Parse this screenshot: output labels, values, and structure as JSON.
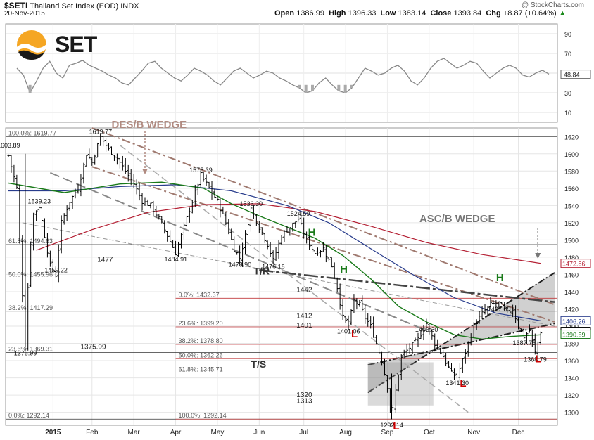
{
  "header": {
    "symbol": "$SETI",
    "name": "Thailand Set Index (EOD)",
    "exchange": "INDX",
    "date": "20-Nov-2015",
    "credit": "@ StockCharts.com",
    "open_label": "Open",
    "open": "1386.99",
    "high_label": "High",
    "high": "1396.33",
    "low_label": "Low",
    "low": "1383.14",
    "close_label": "Close",
    "close": "1393.84",
    "chg_label": "Chg",
    "chg": "+8.87 (+0.64%)",
    "chg_arrow": "▲"
  },
  "logo": {
    "text": "SET"
  },
  "colors": {
    "price": "#000000",
    "ma50": "#1a7a1a",
    "ma100": "#283c8c",
    "ma200": "#b41e32",
    "rsi": "#888888",
    "annotation": "#b08a80",
    "marker_red": "#cc0000",
    "marker_green": "#1a7a1a"
  },
  "chart_data": {
    "type": "ohlc",
    "x_ticks": [
      "2015",
      "Feb",
      "Mar",
      "Apr",
      "May",
      "Jun",
      "Jul",
      "Aug",
      "Sep",
      "Oct",
      "Nov",
      "Dec"
    ],
    "ylim": [
      1285,
      1630
    ],
    "y_ticks": [
      1300,
      1320,
      1340,
      1360,
      1380,
      1400,
      1420,
      1440,
      1460,
      1480,
      1500,
      1520,
      1540,
      1560,
      1580,
      1600,
      1620
    ],
    "grid": true,
    "close_series": [
      {
        "d": 0,
        "v": 1598
      },
      {
        "d": 6,
        "v": 1560
      },
      {
        "d": 12,
        "v": 1375.99
      },
      {
        "d": 15,
        "v": 1480
      },
      {
        "d": 18,
        "v": 1530
      },
      {
        "d": 22,
        "v": 1539.23
      },
      {
        "d": 26,
        "v": 1505
      },
      {
        "d": 30,
        "v": 1470
      },
      {
        "d": 34,
        "v": 1459.22
      },
      {
        "d": 38,
        "v": 1520
      },
      {
        "d": 44,
        "v": 1545
      },
      {
        "d": 50,
        "v": 1560
      },
      {
        "d": 56,
        "v": 1600
      },
      {
        "d": 60,
        "v": 1590
      },
      {
        "d": 66,
        "v": 1619.77
      },
      {
        "d": 72,
        "v": 1605
      },
      {
        "d": 78,
        "v": 1595
      },
      {
        "d": 84,
        "v": 1580
      },
      {
        "d": 90,
        "v": 1565
      },
      {
        "d": 96,
        "v": 1545
      },
      {
        "d": 102,
        "v": 1540
      },
      {
        "d": 108,
        "v": 1525
      },
      {
        "d": 114,
        "v": 1505
      },
      {
        "d": 120,
        "v": 1484.91
      },
      {
        "d": 126,
        "v": 1515
      },
      {
        "d": 132,
        "v": 1545
      },
      {
        "d": 138,
        "v": 1575.39
      },
      {
        "d": 144,
        "v": 1560
      },
      {
        "d": 150,
        "v": 1545
      },
      {
        "d": 156,
        "v": 1520
      },
      {
        "d": 162,
        "v": 1490
      },
      {
        "d": 166,
        "v": 1478.9
      },
      {
        "d": 170,
        "v": 1505
      },
      {
        "d": 174,
        "v": 1536.3
      },
      {
        "d": 180,
        "v": 1515
      },
      {
        "d": 186,
        "v": 1495
      },
      {
        "d": 190,
        "v": 1476.16
      },
      {
        "d": 196,
        "v": 1505
      },
      {
        "d": 202,
        "v": 1515
      },
      {
        "d": 208,
        "v": 1524.59
      },
      {
        "d": 214,
        "v": 1500
      },
      {
        "d": 220,
        "v": 1485
      },
      {
        "d": 226,
        "v": 1490
      },
      {
        "d": 232,
        "v": 1470
      },
      {
        "d": 236,
        "v": 1445
      },
      {
        "d": 240,
        "v": 1410
      },
      {
        "d": 244,
        "v": 1401.06
      },
      {
        "d": 248,
        "v": 1430
      },
      {
        "d": 252,
        "v": 1425
      },
      {
        "d": 256,
        "v": 1410
      },
      {
        "d": 260,
        "v": 1400
      },
      {
        "d": 264,
        "v": 1380
      },
      {
        "d": 268,
        "v": 1360
      },
      {
        "d": 272,
        "v": 1330
      },
      {
        "d": 275,
        "v": 1292.14
      },
      {
        "d": 278,
        "v": 1325
      },
      {
        "d": 282,
        "v": 1365
      },
      {
        "d": 288,
        "v": 1375
      },
      {
        "d": 294,
        "v": 1385
      },
      {
        "d": 300,
        "v": 1403.3
      },
      {
        "d": 306,
        "v": 1380
      },
      {
        "d": 312,
        "v": 1365
      },
      {
        "d": 318,
        "v": 1345
      },
      {
        "d": 322,
        "v": 1341.3
      },
      {
        "d": 328,
        "v": 1370
      },
      {
        "d": 334,
        "v": 1400
      },
      {
        "d": 340,
        "v": 1415
      },
      {
        "d": 346,
        "v": 1425
      },
      {
        "d": 352,
        "v": 1427.05
      },
      {
        "d": 358,
        "v": 1415
      },
      {
        "d": 362,
        "v": 1420
      },
      {
        "d": 366,
        "v": 1400
      },
      {
        "d": 370,
        "v": 1387.75
      },
      {
        "d": 374,
        "v": 1395
      },
      {
        "d": 378,
        "v": 1368.79
      },
      {
        "d": 382,
        "v": 1393.84
      }
    ],
    "ma50": [
      {
        "d": 0,
        "v": 1566
      },
      {
        "d": 40,
        "v": 1555
      },
      {
        "d": 80,
        "v": 1565
      },
      {
        "d": 110,
        "v": 1567
      },
      {
        "d": 140,
        "v": 1560
      },
      {
        "d": 160,
        "v": 1542
      },
      {
        "d": 180,
        "v": 1528
      },
      {
        "d": 200,
        "v": 1515
      },
      {
        "d": 220,
        "v": 1502
      },
      {
        "d": 240,
        "v": 1482
      },
      {
        "d": 260,
        "v": 1455
      },
      {
        "d": 280,
        "v": 1423
      },
      {
        "d": 300,
        "v": 1405
      },
      {
        "d": 320,
        "v": 1390
      },
      {
        "d": 340,
        "v": 1385
      },
      {
        "d": 360,
        "v": 1388
      },
      {
        "d": 382,
        "v": 1390
      }
    ],
    "ma100": [
      {
        "d": 0,
        "v": 1557
      },
      {
        "d": 40,
        "v": 1557
      },
      {
        "d": 80,
        "v": 1562
      },
      {
        "d": 120,
        "v": 1564
      },
      {
        "d": 160,
        "v": 1557
      },
      {
        "d": 200,
        "v": 1540
      },
      {
        "d": 230,
        "v": 1520
      },
      {
        "d": 260,
        "v": 1490
      },
      {
        "d": 290,
        "v": 1460
      },
      {
        "d": 320,
        "v": 1433
      },
      {
        "d": 350,
        "v": 1415
      },
      {
        "d": 382,
        "v": 1406.26
      }
    ],
    "ma200": [
      {
        "d": 20,
        "v": 1488
      },
      {
        "d": 60,
        "v": 1512
      },
      {
        "d": 100,
        "v": 1532
      },
      {
        "d": 140,
        "v": 1541
      },
      {
        "d": 180,
        "v": 1542
      },
      {
        "d": 220,
        "v": 1533
      },
      {
        "d": 260,
        "v": 1516
      },
      {
        "d": 300,
        "v": 1497
      },
      {
        "d": 340,
        "v": 1483
      },
      {
        "d": 382,
        "v": 1472.86
      }
    ],
    "last_value_tags": [
      {
        "label": "1472.86",
        "v": 1472.86,
        "color": "#b41e32"
      },
      {
        "label": "1406.26",
        "v": 1406.26,
        "color": "#283c8c"
      },
      {
        "label": "1393.84",
        "v": 1393.84,
        "color": "#000000"
      },
      {
        "label": "1390.59",
        "v": 1390.59,
        "color": "#1a7a1a"
      }
    ],
    "price_labels": [
      {
        "t": "1603.89",
        "d": 0,
        "v": 1603.89
      },
      {
        "t": "1619.77",
        "d": 66,
        "v": 1619.77
      },
      {
        "t": "1575.39",
        "d": 138,
        "v": 1575.39
      },
      {
        "t": "1539.23",
        "d": 22,
        "v": 1539.23
      },
      {
        "t": "1536.30",
        "d": 174,
        "v": 1536.3
      },
      {
        "t": "1524.59",
        "d": 208,
        "v": 1524.59
      },
      {
        "t": "1484.91",
        "d": 120,
        "v": 1484.91
      },
      {
        "t": "1478.90",
        "d": 166,
        "v": 1478.9
      },
      {
        "t": "1476.16",
        "d": 190,
        "v": 1476.16
      },
      {
        "t": "1459.22",
        "d": 34,
        "v": 1459.22
      },
      {
        "t": "1427.05",
        "d": 352,
        "v": 1427.05
      },
      {
        "t": "1403.30",
        "d": 300,
        "v": 1403.3
      },
      {
        "t": "1401.06",
        "d": 244,
        "v": 1401.06
      },
      {
        "t": "1387.75",
        "d": 370,
        "v": 1387.75
      },
      {
        "t": "1375.99",
        "d": 12,
        "v": 1375.99
      },
      {
        "t": "1368.79",
        "d": 378,
        "v": 1368.79
      },
      {
        "t": "1341.30",
        "d": 322,
        "v": 1341.3
      },
      {
        "t": "1292.14",
        "d": 275,
        "v": 1292.14
      }
    ],
    "fib_left": [
      {
        "t": "100.0%: 1619.77",
        "v": 1619.77
      },
      {
        "t": "61.8%: 1494.63",
        "v": 1494.63
      },
      {
        "t": "50.0%: 1455.96",
        "v": 1455.96
      },
      {
        "t": "38.2%: 1417.29",
        "v": 1417.29
      },
      {
        "t": "23.6%: 1369.31",
        "v": 1369.31
      },
      {
        "t": "0.0%: 1292.14",
        "v": 1292.14
      }
    ],
    "fib_right": [
      {
        "t": "0.0%: 1432.37",
        "v": 1432.37
      },
      {
        "t": "23.6%: 1399.20",
        "v": 1399.2
      },
      {
        "t": "38.2%: 1378.80",
        "v": 1378.8
      },
      {
        "t": "50.0%: 1362.26",
        "v": 1362.26
      },
      {
        "t": "61.8%: 1345.71",
        "v": 1345.71
      },
      {
        "t": "100.0%: 1292.14",
        "v": 1292.14
      }
    ],
    "level_labels": [
      {
        "t": "1477",
        "v": 1477
      },
      {
        "t": "1442",
        "v": 1442
      },
      {
        "t": "1412",
        "v": 1412
      },
      {
        "t": "1401",
        "v": 1401
      },
      {
        "t": "1375.99",
        "v": 1375.99
      },
      {
        "t": "1320",
        "v": 1320
      },
      {
        "t": "1313",
        "v": 1313
      }
    ],
    "annotations": [
      {
        "t": "DES/B WEDGE"
      },
      {
        "t": "ASC/B WEDGE"
      },
      {
        "t": "T/R"
      },
      {
        "t": "T/S"
      }
    ],
    "markers": [
      {
        "t": "H",
        "d": 215,
        "v": 1505,
        "color": "#1a7a1a"
      },
      {
        "t": "H",
        "d": 238,
        "v": 1462,
        "color": "#1a7a1a"
      },
      {
        "t": "H",
        "d": 350,
        "v": 1452,
        "color": "#1a7a1a"
      },
      {
        "t": "L",
        "d": 246,
        "v": 1387,
        "color": "#cc0000"
      },
      {
        "t": "L",
        "d": 276,
        "v": 1280,
        "color": "#cc0000"
      },
      {
        "t": "L",
        "d": 324,
        "v": 1330,
        "color": "#cc0000"
      },
      {
        "t": "L",
        "d": 378,
        "v": 1358,
        "color": "#cc0000"
      }
    ],
    "rsi": {
      "ylim": [
        0,
        100
      ],
      "ticks": [
        10,
        30,
        50,
        70,
        90
      ],
      "last": "48.84",
      "values": [
        55,
        48,
        30,
        42,
        55,
        62,
        50,
        45,
        58,
        60,
        63,
        58,
        55,
        52,
        48,
        45,
        40,
        38,
        45,
        52,
        60,
        62,
        55,
        50,
        45,
        42,
        48,
        55,
        52,
        48,
        42,
        38,
        45,
        52,
        55,
        50,
        45,
        48,
        52,
        50,
        45,
        42,
        38,
        35,
        30,
        32,
        40,
        45,
        38,
        32,
        30,
        35,
        45,
        55,
        52,
        48,
        50,
        55,
        58,
        52,
        42,
        38,
        45,
        55,
        62,
        65,
        60,
        55,
        58,
        62,
        60,
        52,
        45,
        50,
        55,
        58,
        55,
        48,
        46,
        50,
        53,
        49
      ]
    }
  }
}
